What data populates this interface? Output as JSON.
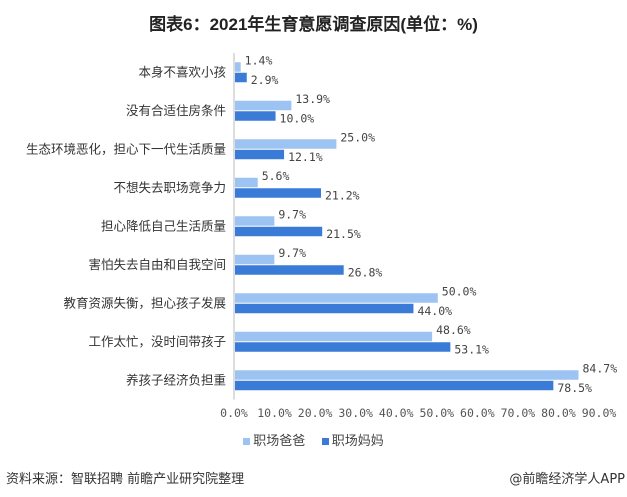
{
  "chart_data": {
    "type": "bar",
    "orientation": "horizontal",
    "title": "图表6：2021年生育意愿调查原因(单位：%)",
    "categories": [
      "本身不喜欢小孩",
      "没有合适住房条件",
      "生态环境恶化，担心下一代生活质量",
      "不想失去职场竞争力",
      "担心降低自己生活质量",
      "害怕失去自由和自我空间",
      "教育资源失衡，担心孩子发展",
      "工作太忙，没时间带孩子",
      "养孩子经济负担重"
    ],
    "series": [
      {
        "name": "职场爸爸",
        "color": "#9DC3F2",
        "values": [
          1.4,
          13.9,
          25.0,
          5.6,
          9.7,
          9.7,
          50.0,
          48.6,
          84.7
        ]
      },
      {
        "name": "职场妈妈",
        "color": "#3A7BD8",
        "values": [
          2.9,
          10.0,
          12.1,
          21.2,
          21.5,
          26.8,
          44.0,
          53.1,
          78.5
        ]
      }
    ],
    "xlim": [
      0,
      90
    ],
    "xticks": [
      "0.0%",
      "10.0%",
      "20.0%",
      "30.0%",
      "40.0%",
      "50.0%",
      "60.0%",
      "70.0%",
      "80.0%",
      "90.0%"
    ],
    "legend": "bottom",
    "grid": false
  },
  "footer": {
    "source": "资料来源：智联招聘 前瞻产业研究院整理",
    "credit": "@前瞻经济学人APP"
  }
}
